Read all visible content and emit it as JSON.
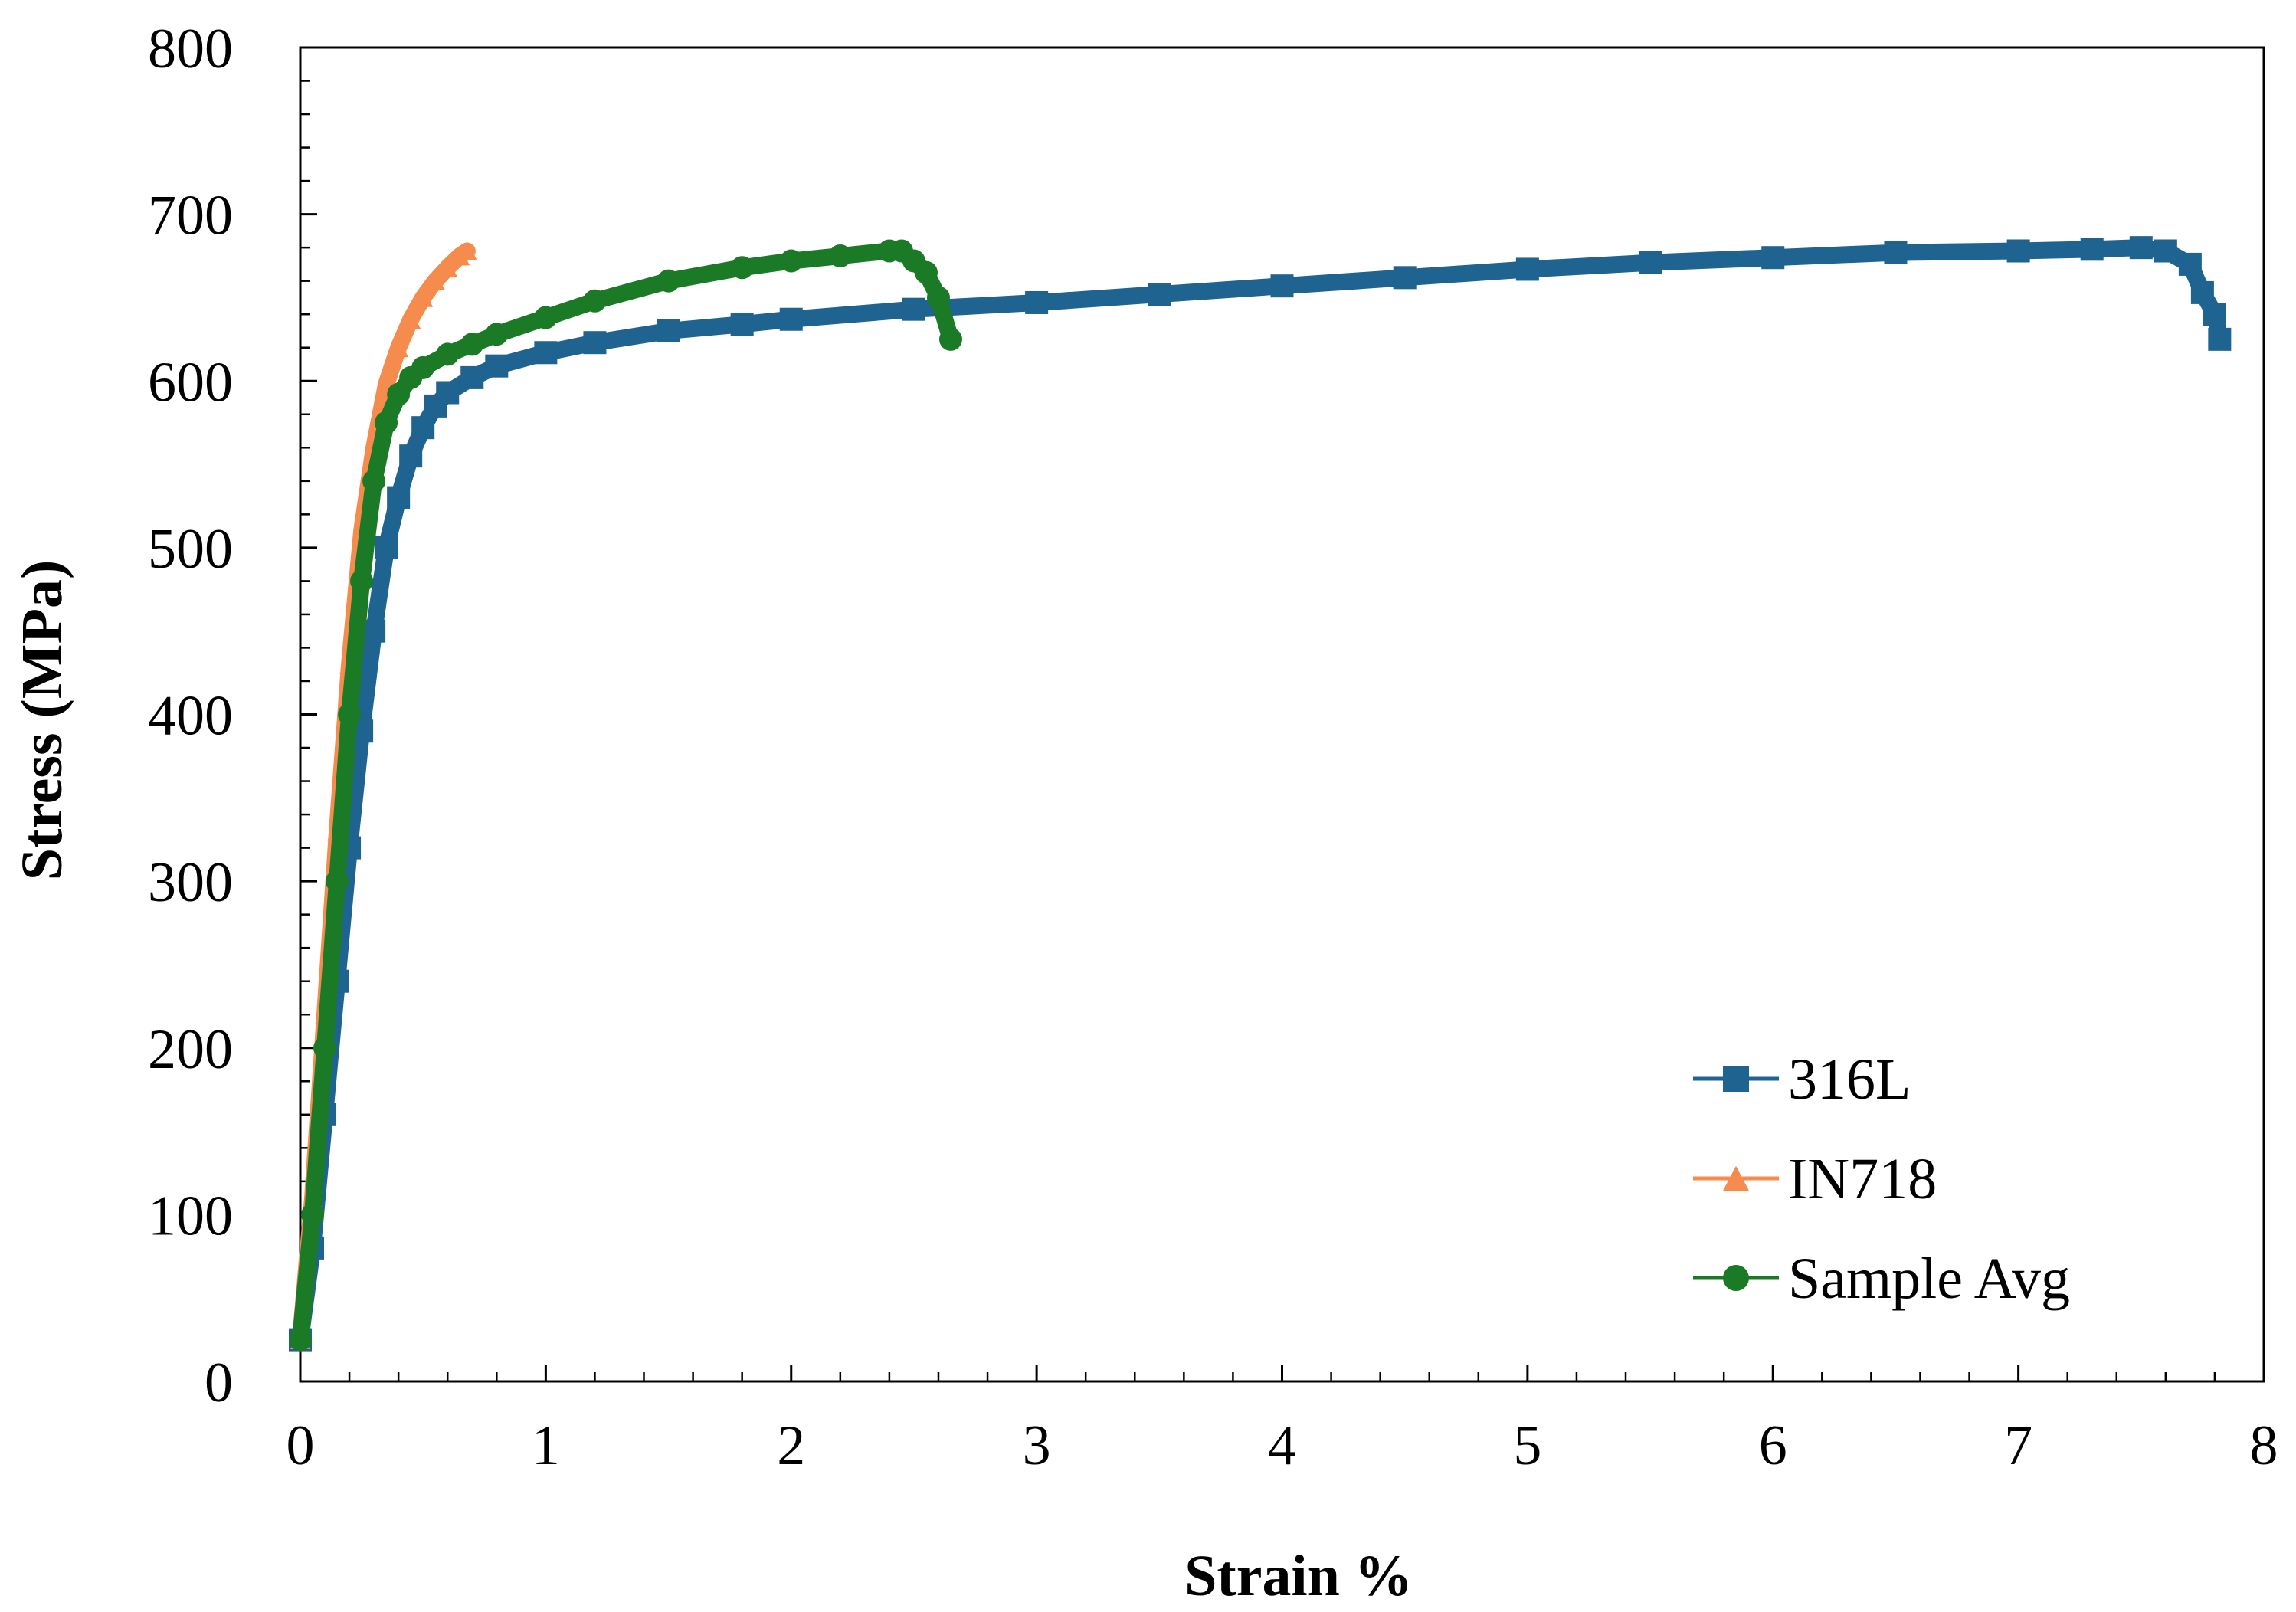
{
  "chart_data": {
    "type": "line",
    "title": "",
    "xlabel": "Strain %",
    "ylabel": "Stress (MPa)",
    "xlim": [
      0,
      8
    ],
    "ylim": [
      0,
      800
    ],
    "xticks": [
      0,
      1,
      2,
      3,
      4,
      5,
      6,
      7,
      8
    ],
    "yticks": [
      0,
      100,
      200,
      300,
      400,
      500,
      600,
      700,
      800
    ],
    "xtick_labels": [
      "0",
      "1",
      "2",
      "3",
      "4",
      "5",
      "6",
      "7",
      "8"
    ],
    "ytick_labels": [
      "0",
      "100",
      "200",
      "300",
      "400",
      "500",
      "600",
      "700",
      "800"
    ],
    "grid": false,
    "legend_position": "bottom-right",
    "series": [
      {
        "name": "316L",
        "color": "#1f6391",
        "marker": "square",
        "x": [
          0.0,
          0.05,
          0.1,
          0.15,
          0.2,
          0.25,
          0.3,
          0.35,
          0.4,
          0.45,
          0.5,
          0.55,
          0.6,
          0.7,
          0.8,
          1.0,
          1.2,
          1.5,
          1.8,
          2.0,
          2.5,
          3.0,
          3.5,
          4.0,
          4.5,
          5.0,
          5.5,
          6.0,
          6.5,
          7.0,
          7.3,
          7.5,
          7.6,
          7.7,
          7.75,
          7.8,
          7.82
        ],
        "y": [
          25,
          80,
          160,
          240,
          320,
          390,
          450,
          500,
          530,
          555,
          572,
          585,
          593,
          602,
          609,
          617,
          623,
          630,
          634,
          637,
          643,
          647,
          652,
          657,
          662,
          667,
          671,
          674,
          677,
          678,
          679,
          680,
          678,
          670,
          653,
          640,
          625
        ]
      },
      {
        "name": "IN718",
        "color": "#f58b4c",
        "marker": "triangle",
        "x": [
          0.0,
          0.05,
          0.1,
          0.15,
          0.2,
          0.25,
          0.3,
          0.35,
          0.4,
          0.45,
          0.5,
          0.55,
          0.6,
          0.65,
          0.68
        ],
        "y": [
          25,
          110,
          220,
          330,
          430,
          510,
          560,
          598,
          620,
          637,
          650,
          660,
          668,
          675,
          678
        ]
      },
      {
        "name": "Sample Avg",
        "color": "#1a7a25",
        "marker": "circle",
        "x": [
          0.0,
          0.05,
          0.1,
          0.15,
          0.2,
          0.25,
          0.3,
          0.35,
          0.4,
          0.45,
          0.5,
          0.6,
          0.7,
          0.8,
          1.0,
          1.2,
          1.5,
          1.8,
          2.0,
          2.2,
          2.4,
          2.45,
          2.5,
          2.55,
          2.6,
          2.65
        ],
        "y": [
          25,
          100,
          200,
          300,
          400,
          480,
          540,
          575,
          592,
          602,
          608,
          616,
          622,
          628,
          638,
          648,
          660,
          668,
          672,
          675,
          678,
          678,
          672,
          665,
          650,
          625
        ]
      }
    ]
  }
}
